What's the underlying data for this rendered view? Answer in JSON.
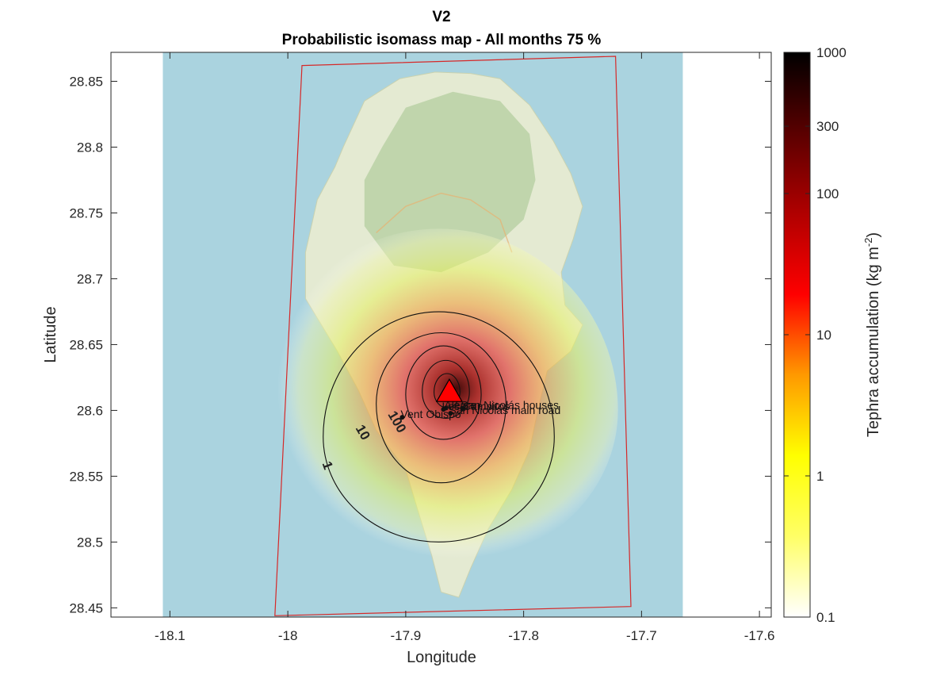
{
  "chart_data": {
    "type": "heatmap",
    "title": "V2",
    "subtitle": "Probabilistic isomass map - All months 75 %",
    "xlabel": "Longitude",
    "ylabel": "Latitude",
    "xlim": [
      -18.15,
      -17.59
    ],
    "ylim": [
      28.443,
      28.872
    ],
    "xticks": [
      -18.1,
      -18,
      -17.9,
      -17.8,
      -17.7,
      -17.6
    ],
    "xtick_labels": [
      "-18.1",
      "-18",
      "-17.9",
      "-17.8",
      "-17.7",
      "-17.6"
    ],
    "yticks": [
      28.45,
      28.5,
      28.55,
      28.6,
      28.65,
      28.7,
      28.75,
      28.8,
      28.85
    ],
    "ytick_labels": [
      "28.45",
      "28.5",
      "28.55",
      "28.6",
      "28.65",
      "28.7",
      "28.75",
      "28.8",
      "28.85"
    ],
    "grid": false,
    "colorbar": {
      "label": "Tephra accumulation (kg m",
      "label_superscript": "-2",
      "label_close": ")",
      "scale": "log",
      "range": [
        0.1,
        1000
      ],
      "ticks": [
        0.1,
        1,
        10,
        100,
        300,
        1000
      ],
      "tick_labels": [
        "0.1",
        "1",
        "10",
        "100",
        "300",
        "1000"
      ],
      "colors": [
        "#ffffff",
        "#ffff66",
        "#ffff00",
        "#ff9900",
        "#ff0000",
        "#b00000",
        "#5a0000",
        "#000000"
      ]
    },
    "map_extent": {
      "lon": [
        -18.106,
        -17.665
      ],
      "lat": [
        28.443,
        28.872
      ]
    },
    "domain_polygon": [
      [
        -17.988,
        28.862
      ],
      [
        -17.722,
        28.869
      ],
      [
        -17.709,
        28.451
      ],
      [
        -18.011,
        28.444
      ]
    ],
    "vent": {
      "lon": -17.863,
      "lat": 28.614
    },
    "contours": [
      {
        "level": "1",
        "center": [
          -17.872,
          28.58
        ],
        "rx": 0.098,
        "ry_up": 0.095,
        "ry_down": 0.08,
        "label_at": [
          -17.967,
          28.558
        ]
      },
      {
        "level": "10",
        "center": [
          -17.87,
          28.605
        ],
        "rx": 0.055,
        "ry_up": 0.054,
        "ry_down": 0.06,
        "label_at": [
          -17.937,
          28.583
        ]
      },
      {
        "level": "100",
        "center": [
          -17.868,
          28.612
        ],
        "rx": 0.032,
        "ry_up": 0.037,
        "ry_down": 0.034,
        "label_at": [
          -17.908,
          28.591
        ]
      },
      {
        "level": "",
        "center": [
          -17.866,
          28.614
        ],
        "rx": 0.02,
        "ry_up": 0.024,
        "ry_down": 0.02,
        "label_at": null
      },
      {
        "level": "",
        "center": [
          -17.865,
          28.614
        ],
        "rx": 0.011,
        "ry_up": 0.014,
        "ry_down": 0.012,
        "label_at": null
      }
    ],
    "sites": [
      {
        "name": "Alegre",
        "lon": -17.866,
        "lat": 28.603
      },
      {
        "name": "Los Campitos",
        "lon": -17.868,
        "lat": 28.602
      },
      {
        "name": "San Nicolás houses",
        "lon": -17.852,
        "lat": 28.603
      },
      {
        "name": "Vent Obispo",
        "lon": -17.903,
        "lat": 28.596
      },
      {
        "name": "San Nicolás main road",
        "lon": -17.862,
        "lat": 28.599
      }
    ]
  }
}
